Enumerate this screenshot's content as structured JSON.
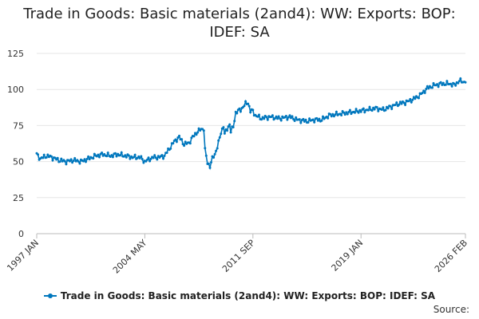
{
  "chart_data": {
    "type": "line",
    "title_lines": [
      "Trade in Goods: Basic materials (2and4): WW: Exports: BOP:",
      "IDEF: SA"
    ],
    "x_tick_labels": [
      "1997 JAN",
      "2004 MAY",
      "2011 SEP",
      "2019 JAN",
      "2026 FEB"
    ],
    "x_tick_months": [
      0,
      88,
      176,
      264,
      349
    ],
    "y_ticks": [
      0,
      25,
      50,
      75,
      100,
      125
    ],
    "ylim": [
      0,
      125
    ],
    "grid": true,
    "legend_position": "bottom",
    "source_label": "Source:",
    "series": [
      {
        "name": "Trade in Goods: Basic materials (2and4): WW: Exports: BOP: IDEF: SA",
        "color": "#0077bd",
        "start": "1997-01",
        "frequency": "monthly",
        "anchors": [
          [
            0,
            55
          ],
          [
            3,
            52
          ],
          [
            8,
            54
          ],
          [
            12,
            53
          ],
          [
            18,
            51
          ],
          [
            24,
            50
          ],
          [
            30,
            51
          ],
          [
            36,
            50
          ],
          [
            42,
            52
          ],
          [
            48,
            54
          ],
          [
            54,
            55
          ],
          [
            60,
            54
          ],
          [
            66,
            55
          ],
          [
            72,
            54
          ],
          [
            78,
            53
          ],
          [
            84,
            53
          ],
          [
            88,
            50
          ],
          [
            90,
            51
          ],
          [
            95,
            53
          ],
          [
            100,
            53
          ],
          [
            104,
            54
          ],
          [
            108,
            59
          ],
          [
            112,
            64
          ],
          [
            116,
            67
          ],
          [
            120,
            62
          ],
          [
            124,
            63
          ],
          [
            127,
            67
          ],
          [
            130,
            70
          ],
          [
            133,
            72
          ],
          [
            136,
            73
          ],
          [
            137,
            58
          ],
          [
            139,
            49
          ],
          [
            141,
            47
          ],
          [
            143,
            52
          ],
          [
            145,
            55
          ],
          [
            148,
            63
          ],
          [
            150,
            70
          ],
          [
            152,
            75
          ],
          [
            153,
            69
          ],
          [
            157,
            76
          ],
          [
            158,
            71
          ],
          [
            160,
            74
          ],
          [
            162,
            84
          ],
          [
            166,
            86
          ],
          [
            170,
            90
          ],
          [
            172,
            91
          ],
          [
            174,
            85
          ],
          [
            176,
            85
          ],
          [
            178,
            82
          ],
          [
            183,
            80
          ],
          [
            190,
            81
          ],
          [
            198,
            80
          ],
          [
            206,
            81
          ],
          [
            212,
            79
          ],
          [
            220,
            78
          ],
          [
            226,
            79
          ],
          [
            232,
            79
          ],
          [
            238,
            82
          ],
          [
            246,
            83
          ],
          [
            254,
            84
          ],
          [
            262,
            85
          ],
          [
            270,
            86
          ],
          [
            276,
            87
          ],
          [
            282,
            86
          ],
          [
            288,
            88
          ],
          [
            294,
            90
          ],
          [
            300,
            91
          ],
          [
            306,
            93
          ],
          [
            312,
            96
          ],
          [
            318,
            101
          ],
          [
            324,
            103
          ],
          [
            330,
            104
          ],
          [
            336,
            104
          ],
          [
            340,
            103
          ],
          [
            344,
            106
          ],
          [
            349,
            105
          ]
        ]
      }
    ]
  }
}
